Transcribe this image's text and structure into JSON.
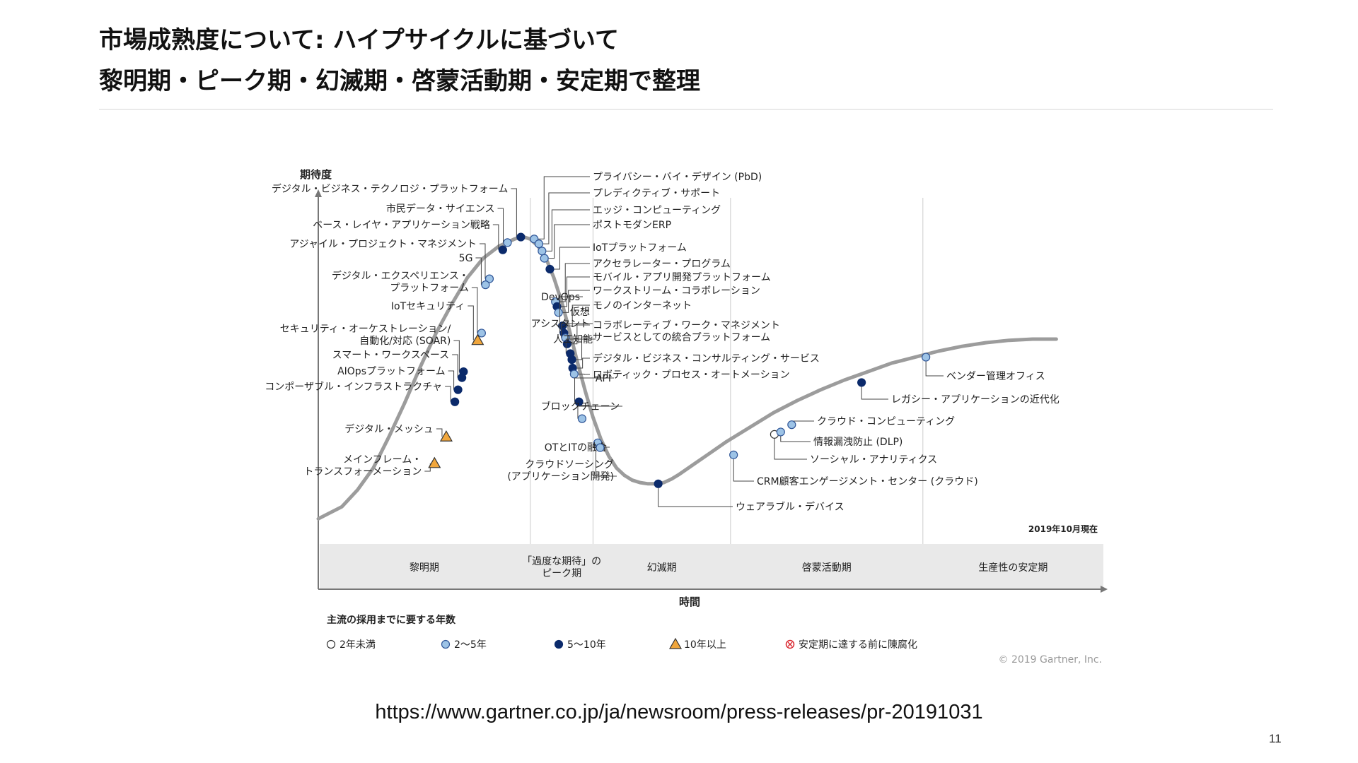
{
  "slide": {
    "title_line1": "市場成熟度について: ハイプサイクルに基づいて",
    "title_line2": "黎明期・ピーク期・幻滅期・啓蒙活動期・安定期で整理",
    "source_url": "https://www.gartner.co.jp/ja/newsroom/press-releases/pr-20191031",
    "page_number": "11"
  },
  "chart_data": {
    "type": "scatter",
    "title": "",
    "ylabel": "期待度",
    "xlabel": "時間",
    "as_of": "2019年10月現在",
    "copyright": "© 2019 Gartner, Inc.",
    "phases": [
      {
        "label": "黎明期",
        "start": 0,
        "end": 27
      },
      {
        "label": "「過度な期待」の\nピーク期",
        "start": 27,
        "end": 35
      },
      {
        "label": "幻滅期",
        "start": 35,
        "end": 52.5
      },
      {
        "label": "啓蒙活動期",
        "start": 52.5,
        "end": 77
      },
      {
        "label": "生産性の安定期",
        "start": 77,
        "end": 100
      }
    ],
    "legend_title": "主流の採用までに要する年数",
    "legend": [
      {
        "key": "lt2",
        "label": "2年未満",
        "fill": "#ffffff",
        "stroke": "#333333",
        "shape": "circle"
      },
      {
        "key": "y2to5",
        "label": "2～5年",
        "fill": "#9dc3e6",
        "stroke": "#2f5597",
        "shape": "circle"
      },
      {
        "key": "y5to10",
        "label": "5～10年",
        "fill": "#0b2a6b",
        "stroke": "#0b2a6b",
        "shape": "circle"
      },
      {
        "key": "gt10",
        "label": "10年以上",
        "fill": "#f0a63c",
        "stroke": "#333333",
        "shape": "triangle"
      },
      {
        "key": "obsolete",
        "label": "安定期に達する前に陳腐化",
        "fill": "#ffffff",
        "stroke": "#d9262e",
        "shape": "crossed"
      }
    ],
    "curve": [
      [
        0,
        4
      ],
      [
        3,
        9
      ],
      [
        5,
        16
      ],
      [
        7,
        25
      ],
      [
        9,
        38
      ],
      [
        11,
        52
      ],
      [
        13,
        67
      ],
      [
        15,
        81
      ],
      [
        17,
        93
      ],
      [
        19,
        104
      ],
      [
        21,
        112
      ],
      [
        23,
        117
      ],
      [
        25,
        120
      ],
      [
        26,
        121
      ],
      [
        27,
        120
      ],
      [
        28,
        117
      ],
      [
        29,
        112
      ],
      [
        30,
        104
      ],
      [
        31,
        94
      ],
      [
        32,
        82
      ],
      [
        33,
        69
      ],
      [
        34,
        57
      ],
      [
        35,
        46
      ],
      [
        36,
        37
      ],
      [
        37,
        30
      ],
      [
        38,
        25
      ],
      [
        39,
        22
      ],
      [
        40,
        20
      ],
      [
        41,
        19
      ],
      [
        42,
        18.5
      ],
      [
        43,
        18.5
      ],
      [
        44,
        19
      ],
      [
        45,
        20.5
      ],
      [
        46,
        22.5
      ],
      [
        48,
        27
      ],
      [
        50,
        31.5
      ],
      [
        52,
        36
      ],
      [
        55,
        42
      ],
      [
        58,
        48
      ],
      [
        61,
        53
      ],
      [
        64,
        57.5
      ],
      [
        67,
        61.5
      ],
      [
        70,
        65
      ],
      [
        73,
        68.5
      ],
      [
        76,
        71
      ],
      [
        79,
        73.5
      ],
      [
        82,
        75.5
      ],
      [
        85,
        77
      ],
      [
        88,
        78
      ],
      [
        91,
        78.5
      ],
      [
        94,
        78.5
      ]
    ],
    "points": [
      {
        "label": "デジタル・ビジネス・テクノロジ・プラットフォーム",
        "x": 25.8,
        "y": 120.8,
        "cat": "y5to10",
        "side": "left"
      },
      {
        "label": "市民データ・サイエンス",
        "x": 24.1,
        "y": 118.5,
        "cat": "y2to5",
        "side": "left"
      },
      {
        "label": "ベース・レイヤ・アプリケーション戦略",
        "x": 23.5,
        "y": 115.5,
        "cat": "y5to10",
        "side": "left"
      },
      {
        "label": "アジャイル・プロジェクト・マネジメント",
        "x": 21.8,
        "y": 103.5,
        "cat": "y2to5",
        "side": "left"
      },
      {
        "label": "5G",
        "x": 21.3,
        "y": 101,
        "cat": "y2to5",
        "side": "left"
      },
      {
        "label": "デジタル・エクスペリエンス・\nプラットフォーム",
        "x": 20.8,
        "y": 81,
        "cat": "y2to5",
        "side": "left"
      },
      {
        "label": "IoTセキュリティ",
        "x": 20.3,
        "y": 78,
        "cat": "gt10",
        "side": "left"
      },
      {
        "label": "セキュリティ・オーケストレーション/\n自動化/対応 (SOAR)",
        "x": 18.5,
        "y": 65,
        "cat": "y5to10",
        "side": "left"
      },
      {
        "label": "スマート・ワークスペース",
        "x": 18.3,
        "y": 62.5,
        "cat": "y5to10",
        "side": "left"
      },
      {
        "label": "AIOpsプラットフォーム",
        "x": 17.8,
        "y": 57.5,
        "cat": "y5to10",
        "side": "left"
      },
      {
        "label": "コンポーザブル・インフラストラクチャ",
        "x": 17.4,
        "y": 52.5,
        "cat": "y5to10",
        "side": "left"
      },
      {
        "label": "デジタル・メッシュ",
        "x": 16.3,
        "y": 38,
        "cat": "gt10",
        "side": "left"
      },
      {
        "label": "メインフレーム・\nトランスフォーメーション",
        "x": 14.8,
        "y": 27,
        "cat": "gt10",
        "side": "left"
      },
      {
        "label": "プライバシー・バイ・デザイン (PbD)",
        "x": 27.5,
        "y": 120,
        "cat": "y2to5",
        "side": "right"
      },
      {
        "label": "プレディクティブ・サポート",
        "x": 28.1,
        "y": 118,
        "cat": "y2to5",
        "side": "right"
      },
      {
        "label": "エッジ・コンピューティング",
        "x": 28.5,
        "y": 115,
        "cat": "y2to5",
        "side": "right"
      },
      {
        "label": "ポストモダンERP",
        "x": 28.8,
        "y": 112,
        "cat": "y2to5",
        "side": "right"
      },
      {
        "label": "IoTプラットフォーム",
        "x": 29.5,
        "y": 107.5,
        "cat": "y5to10",
        "side": "right"
      },
      {
        "label": "アクセラレーター・プログラム",
        "x": 30.2,
        "y": 94,
        "cat": "y2to5",
        "side": "right"
      },
      {
        "label": "モバイル・アプリ開発プラットフォーム",
        "x": 30.4,
        "y": 92,
        "cat": "y5to10",
        "side": "right"
      },
      {
        "label": "ワークストリーム・コラボレーション",
        "x": 30.6,
        "y": 89.5,
        "cat": "y2to5",
        "side": "right"
      },
      {
        "label": "モノのインターネット",
        "x": 31.1,
        "y": 84,
        "cat": "y5to10",
        "side": "right"
      },
      {
        "label": "DevOps",
        "x": 31.3,
        "y": 81,
        "cat": "y5to10",
        "side": "left"
      },
      {
        "label": "仮想\nアシスタント",
        "x": 31.5,
        "y": 79,
        "cat": "y2to5",
        "side": "left"
      },
      {
        "label": "コラボレーティブ・ワーク・マネジメント",
        "x": 31.7,
        "y": 76.5,
        "cat": "y5to10",
        "side": "right"
      },
      {
        "label": "人工知能",
        "x": 32.1,
        "y": 72.5,
        "cat": "y5to10",
        "side": "left"
      },
      {
        "label": "サービスとしての統合プラットフォーム",
        "x": 32.3,
        "y": 70,
        "cat": "y5to10",
        "side": "right"
      },
      {
        "label": "デジタル・ビジネス・コンサルティング・サービス",
        "x": 32.4,
        "y": 66.5,
        "cat": "y5to10",
        "side": "right"
      },
      {
        "label": "ロボティック・プロセス・オートメーション",
        "x": 32.6,
        "y": 64,
        "cat": "y2to5",
        "side": "right"
      },
      {
        "label": "API",
        "x": 33.2,
        "y": 52.5,
        "cat": "y5to10",
        "side": "left"
      },
      {
        "label": "ブロックチェーン",
        "x": 33.6,
        "y": 45.5,
        "cat": "y2to5",
        "side": "left"
      },
      {
        "label": "OTとITの融合",
        "x": 35.6,
        "y": 35.5,
        "cat": "y2to5",
        "side": "left"
      },
      {
        "label": "クラウドソーシング\n(アプリケーション開発)",
        "x": 35.9,
        "y": 33.5,
        "cat": "y2to5",
        "side": "left"
      },
      {
        "label": "ウェアラブル・デバイス",
        "x": 43.3,
        "y": 18.5,
        "cat": "y5to10",
        "side": "below"
      },
      {
        "label": "CRM顧客エンゲージメント・センター (クラウド)",
        "x": 52.9,
        "y": 30.5,
        "cat": "y2to5",
        "side": "below"
      },
      {
        "label": "ソーシャル・アナリティクス",
        "x": 58.1,
        "y": 39,
        "cat": "lt2",
        "side": "below"
      },
      {
        "label": "情報漏洩防止 (DLP)",
        "x": 58.9,
        "y": 40,
        "cat": "y2to5",
        "side": "below"
      },
      {
        "label": "クラウド・コンピューティング",
        "x": 60.3,
        "y": 43,
        "cat": "y2to5",
        "side": "below"
      },
      {
        "label": "レガシー・アプリケーションの近代化",
        "x": 69.2,
        "y": 60.5,
        "cat": "y5to10",
        "side": "below"
      },
      {
        "label": "ベンダー管理オフィス",
        "x": 77.4,
        "y": 71,
        "cat": "y2to5",
        "side": "below"
      }
    ]
  }
}
